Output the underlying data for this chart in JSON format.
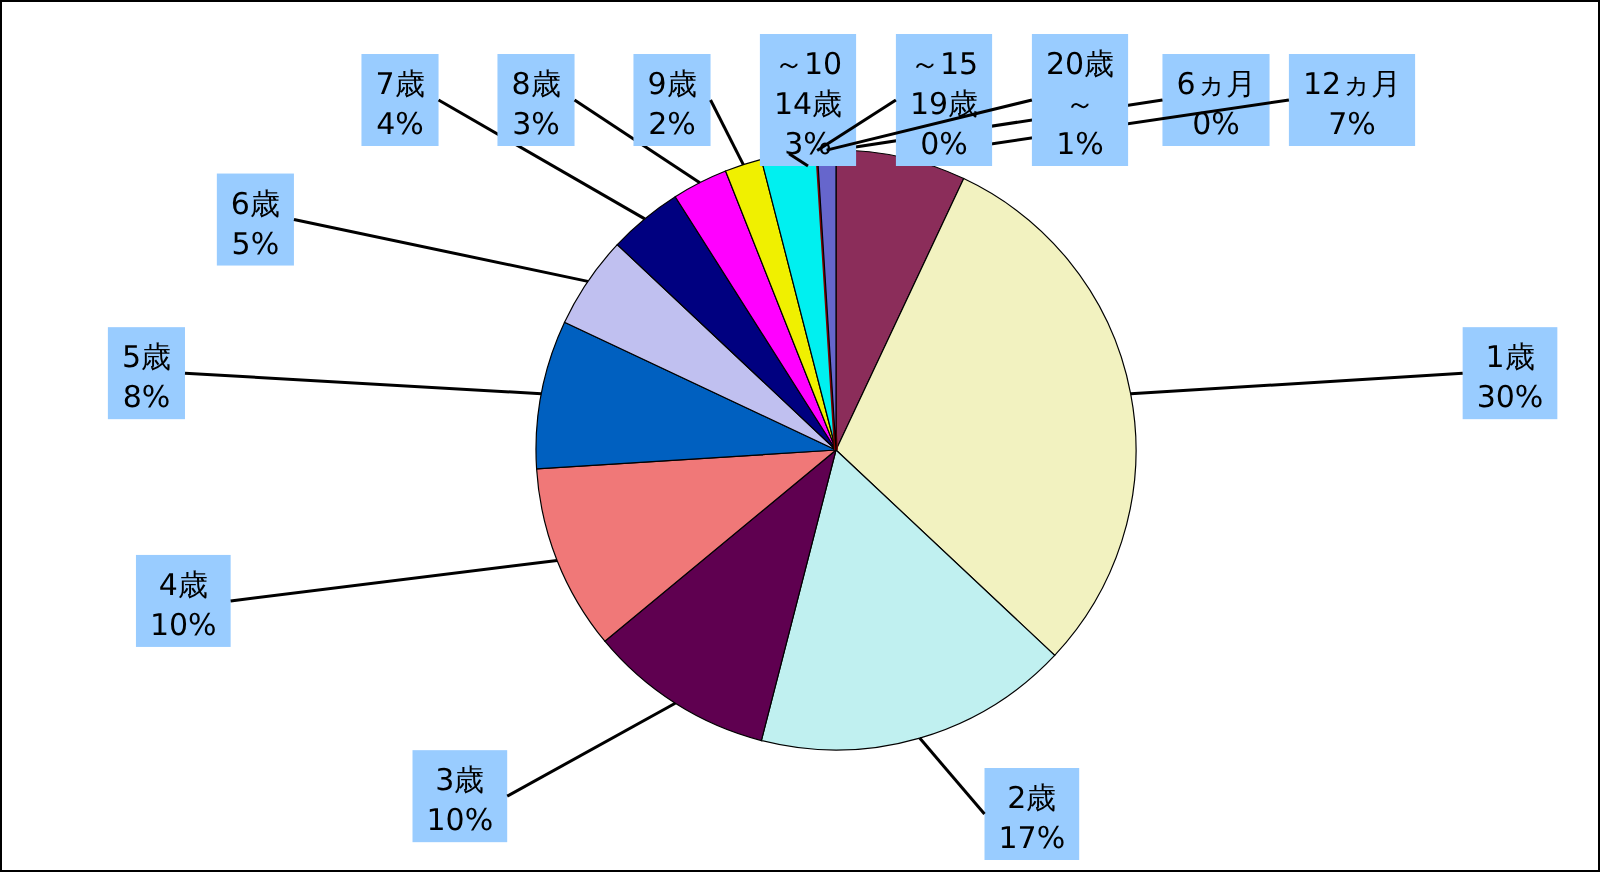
{
  "chart_data": {
    "type": "pie",
    "categories": [
      "6ヵ月",
      "12ヵ月",
      "1歳",
      "2歳",
      "3歳",
      "4歳",
      "5歳",
      "6歳",
      "7歳",
      "8歳",
      "9歳",
      "～1014歳",
      "～1519歳",
      "20歳～"
    ],
    "values": [
      0,
      7,
      30,
      17,
      10,
      10,
      8,
      5,
      4,
      3,
      2,
      3,
      0,
      1
    ],
    "value_labels": [
      "0%",
      "7%",
      "30%",
      "17%",
      "10%",
      "10%",
      "8%",
      "5%",
      "4%",
      "3%",
      "2%",
      "3%",
      "0%",
      "1%"
    ],
    "colors": [
      "#8080ff",
      "#8b2d5a",
      "#f2f2c0",
      "#c0f0f0",
      "#5f0050",
      "#f07878",
      "#0060c0",
      "#c0c0f0",
      "#000080",
      "#ff00ff",
      "#f0f000",
      "#00f0f0",
      "#800000",
      "#6666cc"
    ]
  }
}
